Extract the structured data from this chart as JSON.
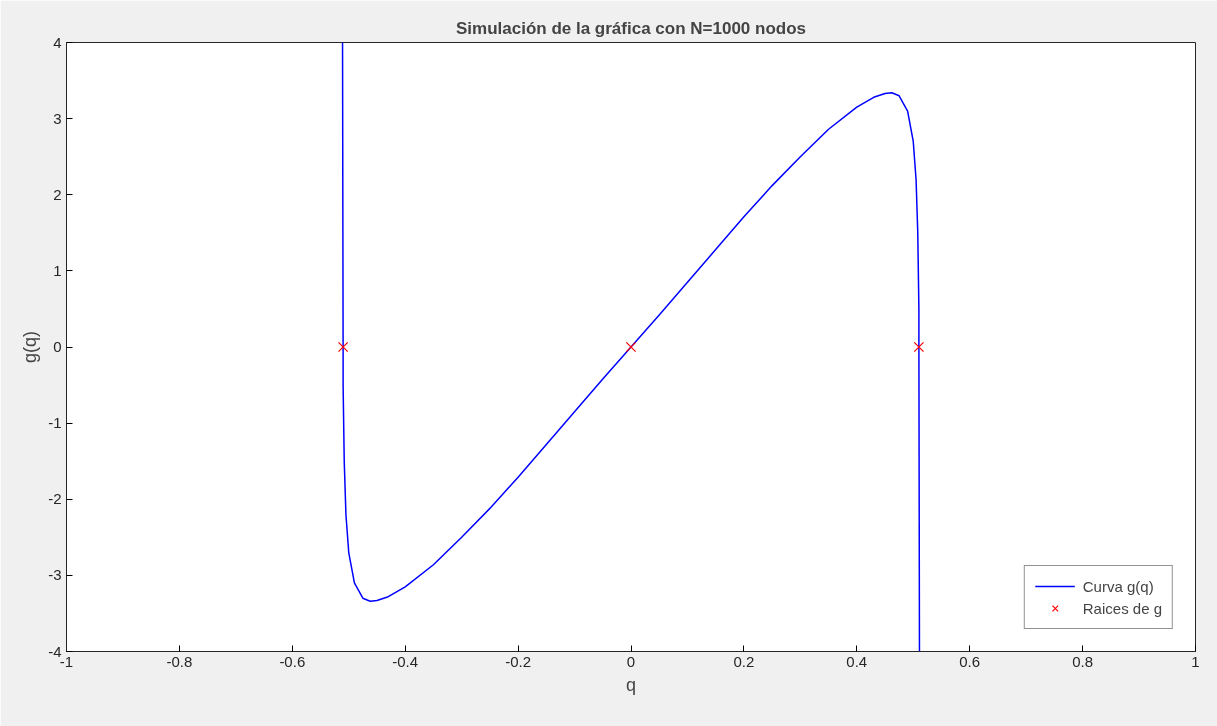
{
  "chart_data": {
    "type": "line",
    "title": "Simulación de la gráfica con N=1000 nodos",
    "xlabel": "q",
    "ylabel": "g(q)",
    "xlim": [
      -1,
      1
    ],
    "ylim": [
      -4,
      4
    ],
    "xticks": [
      -1,
      -0.8,
      -0.6,
      -0.4,
      -0.2,
      0,
      0.2,
      0.4,
      0.6,
      0.8,
      1
    ],
    "yticks": [
      -4,
      -3,
      -2,
      -1,
      0,
      1,
      2,
      3,
      4
    ],
    "grid": false,
    "legend": "bottom right",
    "series": [
      {
        "name": "Curva g(q)",
        "line_style": "solid",
        "color": "#0000ff",
        "x": [
          -0.511,
          -0.51,
          -0.51,
          -0.508,
          -0.505,
          -0.5,
          -0.49,
          -0.475,
          -0.462,
          -0.45,
          -0.43,
          -0.4,
          -0.35,
          -0.3,
          -0.25,
          -0.2,
          -0.15,
          -0.1,
          -0.05,
          0,
          0.05,
          0.1,
          0.15,
          0.2,
          0.25,
          0.3,
          0.35,
          0.4,
          0.43,
          0.45,
          0.462,
          0.475,
          0.49,
          0.5,
          0.505,
          0.508,
          0.51,
          0.51,
          0.511
        ],
        "values": [
          4,
          0,
          -0.5,
          -1.5,
          -2.2,
          -2.7,
          -3.1,
          -3.3,
          -3.34,
          -3.33,
          -3.28,
          -3.15,
          -2.86,
          -2.5,
          -2.12,
          -1.71,
          -1.28,
          -0.85,
          -0.42,
          0,
          0.42,
          0.85,
          1.28,
          1.71,
          2.12,
          2.5,
          2.86,
          3.15,
          3.28,
          3.33,
          3.34,
          3.3,
          3.1,
          2.7,
          2.2,
          1.5,
          0.5,
          0,
          -4
        ]
      },
      {
        "name": "Raices de g",
        "type": "scatter",
        "marker": "cross",
        "color": "#ff0000",
        "x": [
          -0.51,
          0,
          0.51
        ],
        "values": [
          0,
          0,
          0
        ]
      }
    ]
  }
}
